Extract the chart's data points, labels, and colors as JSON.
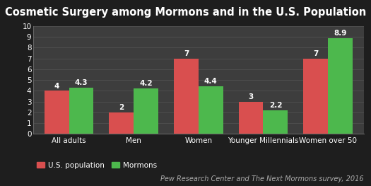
{
  "title": "Cosmetic Surgery among Mormons and in the U.S. Population",
  "categories": [
    "All adults",
    "Men",
    "Women",
    "Younger Millennials",
    "Women over 50"
  ],
  "us_population": [
    4,
    2,
    7,
    3,
    7
  ],
  "mormons": [
    4.3,
    4.2,
    4.4,
    2.2,
    8.9
  ],
  "us_color": "#d94f4f",
  "mormon_color": "#4db84d",
  "background_color": "#1e1e1e",
  "plot_bg_color": "#3d3d3d",
  "title_bg_color": "#0a0a0a",
  "text_color": "#ffffff",
  "ylim": [
    0,
    10
  ],
  "yticks": [
    0,
    1,
    2,
    3,
    4,
    5,
    6,
    7,
    8,
    9,
    10
  ],
  "legend_us": "U.S. population",
  "legend_mormons": "Mormons",
  "source_text": "Pew Research Center and The Next Mormons survey, 2016",
  "title_fontsize": 10.5,
  "label_fontsize": 7.5,
  "tick_fontsize": 7.5,
  "source_fontsize": 7,
  "bar_width": 0.38
}
